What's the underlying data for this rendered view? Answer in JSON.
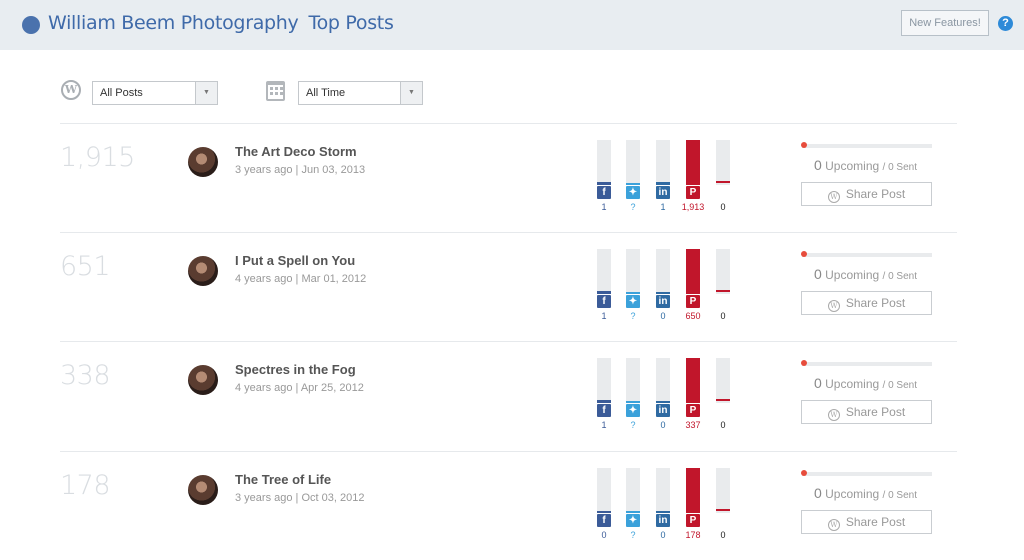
{
  "header": {
    "site": "William Beem Photography",
    "page": "Top Posts",
    "new_features": "New Features!",
    "help": "?"
  },
  "filters": {
    "posts": "All Posts",
    "time": "All Time",
    "wp_icon": "W"
  },
  "colors": {
    "facebook": "#3b5b98",
    "twitter": "#3ba1da",
    "linkedin": "#2f6aa2",
    "pinterest": "#c1162b",
    "other": "#c1162b"
  },
  "posts": [
    {
      "count": "1,915",
      "title": "The Art Deco Storm",
      "meta": "3 years ago | Jun 03, 2013",
      "shares": {
        "facebook": "1",
        "twitter": "?",
        "linkedin": "1",
        "pinterest": "1,913",
        "other": "0"
      },
      "upcoming": "0",
      "upcoming_label": "Upcoming",
      "sent": "/ 0 Sent",
      "share_label": "Share Post"
    },
    {
      "count": "651",
      "title": "I Put a Spell on You",
      "meta": "4 years ago | Mar 01, 2012",
      "shares": {
        "facebook": "1",
        "twitter": "?",
        "linkedin": "0",
        "pinterest": "650",
        "other": "0"
      },
      "upcoming": "0",
      "upcoming_label": "Upcoming",
      "sent": "/ 0 Sent",
      "share_label": "Share Post"
    },
    {
      "count": "338",
      "title": "Spectres in the Fog",
      "meta": "4 years ago | Apr 25, 2012",
      "shares": {
        "facebook": "1",
        "twitter": "?",
        "linkedin": "0",
        "pinterest": "337",
        "other": "0"
      },
      "upcoming": "0",
      "upcoming_label": "Upcoming",
      "sent": "/ 0 Sent",
      "share_label": "Share Post"
    },
    {
      "count": "178",
      "title": "The Tree of Life",
      "meta": "3 years ago | Oct 03, 2012",
      "shares": {
        "facebook": "0",
        "twitter": "?",
        "linkedin": "0",
        "pinterest": "178",
        "other": "0"
      },
      "upcoming": "0",
      "upcoming_label": "Upcoming",
      "sent": "/ 0 Sent",
      "share_label": "Share Post"
    }
  ]
}
